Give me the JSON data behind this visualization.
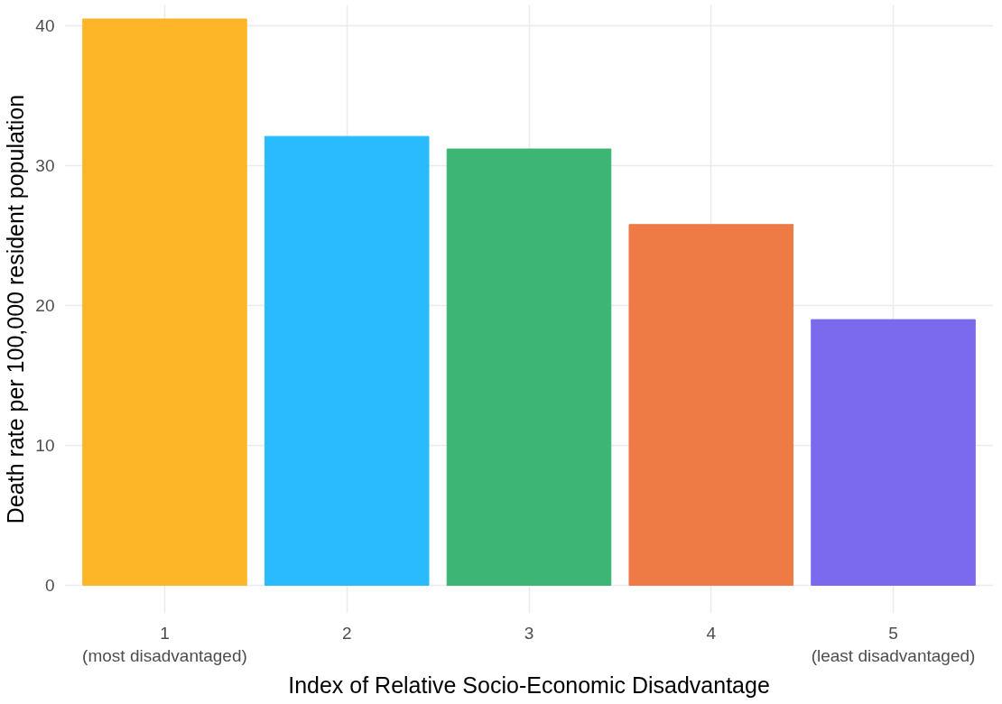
{
  "chart_data": {
    "type": "bar",
    "xlabel": "Index of Relative Socio-Economic Disadvantage",
    "ylabel": "Death rate per 100,000 resident population",
    "categories": [
      "1\n(most disadvantaged)",
      "2",
      "3",
      "4",
      "5\n(least disadvantaged)"
    ],
    "values": [
      40.5,
      32.1,
      31.2,
      25.8,
      19.0
    ],
    "colors": [
      "#fdb628",
      "#29bbfe",
      "#3db574",
      "#ee7a46",
      "#7c6aee"
    ],
    "ylim": [
      -2,
      41.5
    ],
    "yticks": [
      0,
      10,
      20,
      30,
      40
    ],
    "grid": true
  }
}
